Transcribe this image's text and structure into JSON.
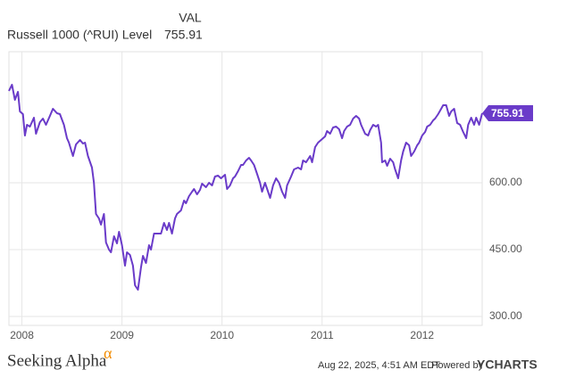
{
  "chart_data": {
    "type": "line",
    "column_header": "VAL",
    "last_value_label": "755.91",
    "xlim": [
      2007.87,
      2012.6
    ],
    "xticks": [
      2008,
      2009,
      2010,
      2011,
      2012
    ],
    "ylim": [
      280,
      894
    ],
    "yticks": [
      {
        "value": 300,
        "label": "300.00"
      },
      {
        "value": 450,
        "label": "450.00"
      },
      {
        "value": 600,
        "label": "600.00"
      }
    ],
    "grid": true,
    "x": [
      2007.87,
      2007.9,
      2007.93,
      2007.96,
      2007.98,
      2008.01,
      2008.03,
      2008.05,
      2008.08,
      2008.12,
      2008.14,
      2008.18,
      2008.21,
      2008.24,
      2008.28,
      2008.31,
      2008.35,
      2008.38,
      2008.42,
      2008.45,
      2008.47,
      2008.51,
      2008.54,
      2008.58,
      2008.61,
      2008.63,
      2008.66,
      2008.7,
      2008.72,
      2008.74,
      2008.77,
      2008.79,
      2008.82,
      2008.84,
      2008.87,
      2008.89,
      2008.92,
      2008.95,
      2008.97,
      2009.0,
      2009.03,
      2009.05,
      2009.08,
      2009.11,
      2009.13,
      2009.16,
      2009.19,
      2009.21,
      2009.24,
      2009.27,
      2009.29,
      2009.32,
      2009.36,
      2009.39,
      2009.42,
      2009.45,
      2009.47,
      2009.5,
      2009.53,
      2009.55,
      2009.59,
      2009.62,
      2009.64,
      2009.67,
      2009.7,
      2009.72,
      2009.75,
      2009.78,
      2009.8,
      2009.84,
      2009.87,
      2009.9,
      2009.93,
      2009.96,
      2009.99,
      2010.03,
      2010.05,
      2010.08,
      2010.11,
      2010.13,
      2010.16,
      2010.19,
      2010.21,
      2010.24,
      2010.27,
      2010.29,
      2010.32,
      2010.35,
      2010.38,
      2010.4,
      2010.43,
      2010.46,
      2010.48,
      2010.51,
      2010.54,
      2010.57,
      2010.6,
      2010.63,
      2010.65,
      2010.69,
      2010.72,
      2010.76,
      2010.79,
      2010.81,
      2010.84,
      2010.88,
      2010.9,
      2010.93,
      2010.96,
      2010.99,
      2011.03,
      2011.05,
      2011.08,
      2011.11,
      2011.14,
      2011.17,
      2011.2,
      2011.22,
      2011.25,
      2011.28,
      2011.31,
      2011.34,
      2011.37,
      2011.39,
      2011.43,
      2011.46,
      2011.48,
      2011.51,
      2011.54,
      2011.56,
      2011.59,
      2011.6,
      2011.63,
      2011.65,
      2011.68,
      2011.71,
      2011.73,
      2011.76,
      2011.79,
      2011.81,
      2011.84,
      2011.87,
      2011.89,
      2011.92,
      2011.95,
      2011.97,
      2012.0,
      2012.03,
      2012.05,
      2012.08,
      2012.11,
      2012.13,
      2012.16,
      2012.19,
      2012.21,
      2012.24,
      2012.27,
      2012.29,
      2012.32,
      2012.35,
      2012.38,
      2012.41,
      2012.44,
      2012.46,
      2012.49,
      2012.52,
      2012.54,
      2012.57,
      2012.6
    ],
    "series": [
      {
        "name": "Russell 1000 (^RUI) Level",
        "color": "#6a3bc9",
        "values": [
          806,
          820,
          786,
          804,
          760,
          754,
          706,
          730,
          726,
          746,
          710,
          736,
          744,
          730,
          750,
          766,
          756,
          754,
          730,
          700,
          690,
          660,
          686,
          696,
          688,
          690,
          660,
          634,
          600,
          530,
          520,
          506,
          530,
          466,
          450,
          444,
          480,
          464,
          490,
          460,
          414,
          444,
          438,
          414,
          370,
          360,
          410,
          436,
          420,
          460,
          450,
          486,
          486,
          486,
          510,
          494,
          510,
          486,
          520,
          530,
          538,
          560,
          554,
          570,
          580,
          586,
          574,
          584,
          598,
          590,
          600,
          594,
          614,
          616,
          610,
          618,
          586,
          594,
          610,
          614,
          626,
          640,
          640,
          650,
          656,
          650,
          640,
          620,
          600,
          580,
          600,
          580,
          566,
          594,
          610,
          600,
          580,
          566,
          594,
          614,
          630,
          634,
          630,
          650,
          646,
          660,
          646,
          680,
          690,
          696,
          704,
          716,
          710,
          724,
          726,
          720,
          700,
          716,
          726,
          730,
          744,
          750,
          744,
          730,
          710,
          706,
          718,
          730,
          726,
          730,
          690,
          646,
          650,
          638,
          654,
          646,
          630,
          610,
          650,
          670,
          690,
          684,
          660,
          670,
          684,
          690,
          706,
          714,
          726,
          730,
          740,
          744,
          754,
          766,
          774,
          774,
          750,
          760,
          766,
          734,
          730,
          714,
          700,
          730,
          746,
          730,
          746,
          730,
          755.91
        ]
      }
    ]
  },
  "footer": {
    "brand": "Seeking Alpha",
    "brand_mark": "α",
    "timestamp": "Aug 22, 2025, 4:51 AM EDT",
    "powered_by": "Powered by",
    "provider": "YCHARTS"
  }
}
